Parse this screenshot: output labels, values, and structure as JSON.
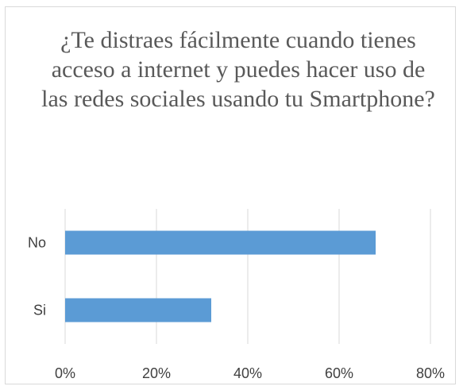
{
  "chart_data": {
    "type": "bar",
    "orientation": "horizontal",
    "title": "¿Te distraes fácilmente cuando tienes acceso a internet y puedes hacer uso de las redes sociales usando tu Smartphone?",
    "categories": [
      "No",
      "Si"
    ],
    "values": [
      0.68,
      0.32
    ],
    "xlim": [
      0,
      0.8
    ],
    "xticks": [
      0,
      0.2,
      0.4,
      0.6,
      0.8
    ],
    "xtick_labels": [
      "0%",
      "20%",
      "40%",
      "60%",
      "80%"
    ],
    "grid": "vertical",
    "legend": "none",
    "bar_color": "#5b9bd5",
    "grid_color": "#d9d9d9"
  }
}
